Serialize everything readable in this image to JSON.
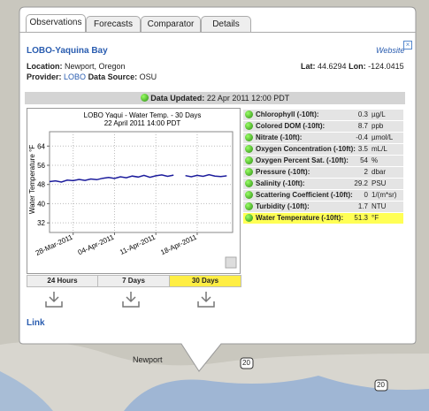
{
  "tabs": [
    "Observations",
    "Forecasts",
    "Comparator",
    "Details"
  ],
  "header": {
    "title": "LOBO-Yaquina Bay",
    "website": "Website"
  },
  "info": {
    "location_label": "Location:",
    "location": "Newport, Oregon",
    "provider_label": "Provider:",
    "provider": "LOBO",
    "source_label": "Data Source:",
    "source": "OSU",
    "lat_label": "Lat:",
    "lat": "44.6294",
    "lon_label": "Lon:",
    "lon": "-124.0415"
  },
  "updated": {
    "label": "Data Updated:",
    "value": "22 Apr 2011 12:00 PDT"
  },
  "chart_data": {
    "type": "line",
    "title": "LOBO Yaqui - Water Temp. - 30 Days",
    "subtitle": "22 April 2011 14:00 PDT",
    "y_label": "Water Temperature °F",
    "color": "#1c1c9c",
    "x": [
      "2011-03-24",
      "2011-03-25",
      "2011-03-26",
      "2011-03-27",
      "2011-03-28",
      "2011-03-29",
      "2011-03-30",
      "2011-03-31",
      "2011-04-01",
      "2011-04-02",
      "2011-04-03",
      "2011-04-04",
      "2011-04-05",
      "2011-04-06",
      "2011-04-07",
      "2011-04-08",
      "2011-04-09",
      "2011-04-10",
      "2011-04-11",
      "2011-04-12",
      "2011-04-13",
      "2011-04-14",
      "2011-04-15",
      "2011-04-16",
      "2011-04-17",
      "2011-04-18",
      "2011-04-19",
      "2011-04-20",
      "2011-04-21",
      "2011-04-22",
      "2011-04-23"
    ],
    "values": [
      49.2,
      49.5,
      49.0,
      49.8,
      49.6,
      50.1,
      49.7,
      50.3,
      50.0,
      50.6,
      50.9,
      50.5,
      51.2,
      50.8,
      51.5,
      51.1,
      51.8,
      51.0,
      51.6,
      52.0,
      51.4,
      51.9,
      null,
      51.7,
      51.2,
      51.8,
      51.4,
      52.1,
      51.5,
      51.3,
      51.6
    ],
    "xlim": [
      "2011-03-24",
      "2011-04-24"
    ],
    "xticks": [
      {
        "value": "2011-03-28",
        "label": "28-Mar-2011"
      },
      {
        "value": "2011-04-04",
        "label": "04-Apr-2011"
      },
      {
        "value": "2011-04-11",
        "label": "11-Apr-2011"
      },
      {
        "value": "2011-04-18",
        "label": "18-Apr-2011"
      }
    ],
    "ylim": [
      28,
      70
    ],
    "yticks": [
      32,
      40,
      48,
      56,
      64
    ],
    "grid": true
  },
  "ranges": [
    "24 Hours",
    "7 Days",
    "30 Days"
  ],
  "selected_range": 2,
  "table": {
    "rows": [
      [
        "Chlorophyll (-10ft):",
        0.3,
        "µg/L"
      ],
      [
        "Colored DOM (-10ft):",
        8.7,
        "ppb"
      ],
      [
        "Nitrate (-10ft):",
        -0.4,
        "µmol/L"
      ],
      [
        "Oxygen Concentration (-10ft):",
        3.5,
        "mL/L"
      ],
      [
        "Oxygen Percent Sat. (-10ft):",
        54,
        "%"
      ],
      [
        "Pressure (-10ft):",
        2,
        "dbar"
      ],
      [
        "Salinity (-10ft):",
        29.2,
        "PSU"
      ],
      [
        "Scattering Coefficient (-10ft):",
        0,
        "1/(m*sr)"
      ],
      [
        "Turbidity (-10ft):",
        1.7,
        "NTU"
      ],
      [
        "Water Temperature (-10ft):",
        51.3,
        "°F"
      ]
    ],
    "highlight_row": 9
  },
  "link": "Link",
  "map_labels": {
    "town": "Newport",
    "route": "20"
  }
}
